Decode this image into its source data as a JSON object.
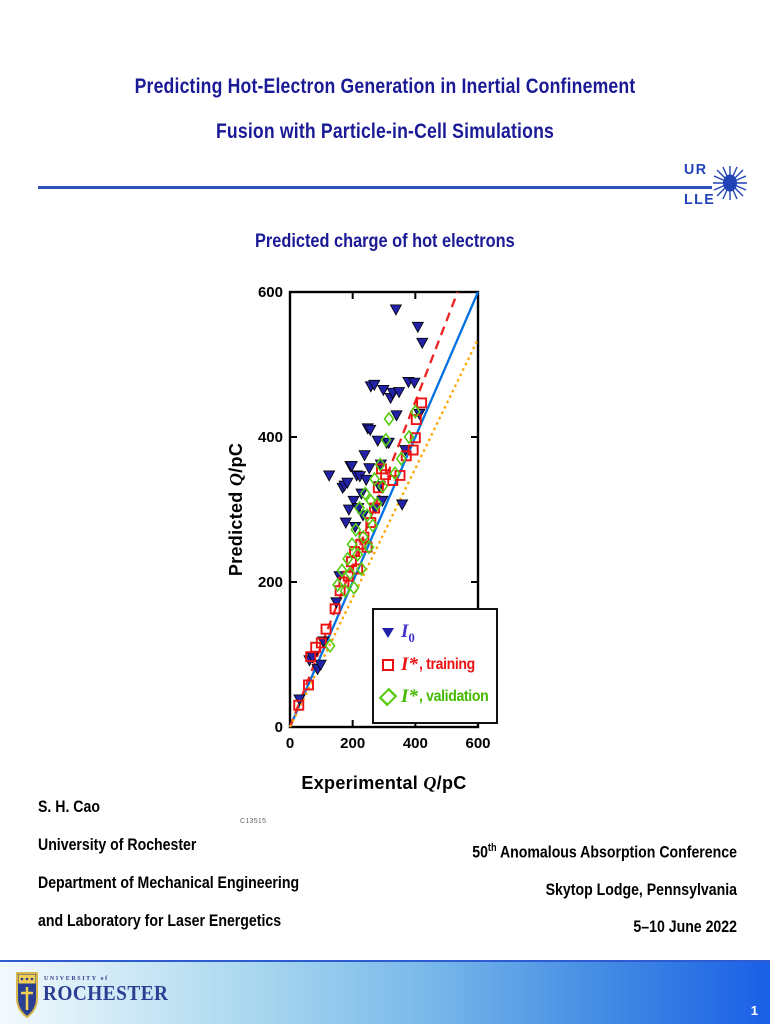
{
  "slide": {
    "title_lines": [
      "Predicting Hot-Electron Generation in Inertial Confinement",
      "Fusion with Particle-in-Cell Simulations"
    ],
    "figure_code": "C13515",
    "page_number": "1"
  },
  "lle_logo": {
    "top": "UR",
    "bottom": "LLE"
  },
  "chart_data": {
    "type": "scatter",
    "title": "Predicted charge of hot electrons",
    "xlabel": "Experimental Q/pC",
    "ylabel": "Predicted Q/pC",
    "xlim": [
      0,
      600
    ],
    "ylim": [
      0,
      600
    ],
    "xticks": [
      0,
      200,
      400,
      600
    ],
    "yticks": [
      0,
      200,
      400,
      600
    ],
    "grid": false,
    "legend_position": "lower right",
    "legend": [
      {
        "base": "I",
        "sub": "0",
        "rest": ""
      },
      {
        "base": "I*",
        "sub": "",
        "rest": ", training"
      },
      {
        "base": "I*",
        "sub": "",
        "rest": ", validation"
      }
    ],
    "lines": [
      {
        "name": "identity y=x",
        "style": "solid",
        "color": "#0072e0",
        "x": [
          0,
          600
        ],
        "y": [
          0,
          600
        ]
      },
      {
        "name": "upper fit",
        "style": "dashed",
        "color": "#ee2222",
        "x": [
          0,
          535
        ],
        "y": [
          0,
          600
        ]
      },
      {
        "name": "lower fit",
        "style": "dotted",
        "color": "#ffa500",
        "x": [
          0,
          600
        ],
        "y": [
          0,
          535
        ]
      }
    ],
    "series": [
      {
        "name": "I0",
        "marker": "triangle-down",
        "color": "#2222a8",
        "points": [
          [
            30,
            38
          ],
          [
            62,
            92
          ],
          [
            72,
            96
          ],
          [
            88,
            80
          ],
          [
            98,
            86
          ],
          [
            106,
            118
          ],
          [
            125,
            347
          ],
          [
            148,
            172
          ],
          [
            158,
            208
          ],
          [
            168,
            330
          ],
          [
            174,
            333
          ],
          [
            178,
            282
          ],
          [
            183,
            337
          ],
          [
            188,
            300
          ],
          [
            193,
            360
          ],
          [
            197,
            360
          ],
          [
            203,
            312
          ],
          [
            208,
            276
          ],
          [
            213,
            347
          ],
          [
            218,
            302
          ],
          [
            223,
            346
          ],
          [
            228,
            322
          ],
          [
            233,
            292
          ],
          [
            238,
            375
          ],
          [
            243,
            341
          ],
          [
            248,
            412
          ],
          [
            253,
            357
          ],
          [
            256,
            410
          ],
          [
            258,
            470
          ],
          [
            269,
            472
          ],
          [
            272,
            302
          ],
          [
            280,
            395
          ],
          [
            285,
            332
          ],
          [
            290,
            362
          ],
          [
            295,
            312
          ],
          [
            298,
            465
          ],
          [
            308,
            392
          ],
          [
            315,
            392
          ],
          [
            321,
            454
          ],
          [
            328,
            461
          ],
          [
            338,
            576
          ],
          [
            340,
            430
          ],
          [
            348,
            462
          ],
          [
            358,
            307
          ],
          [
            368,
            382
          ],
          [
            378,
            476
          ],
          [
            397,
            475
          ],
          [
            408,
            552
          ],
          [
            413,
            432
          ],
          [
            422,
            530
          ]
        ]
      },
      {
        "name": "I*, training",
        "marker": "open-square",
        "color": "#ee1111",
        "points": [
          [
            28,
            30
          ],
          [
            59,
            58
          ],
          [
            66,
            97
          ],
          [
            82,
            110
          ],
          [
            100,
            116
          ],
          [
            115,
            135
          ],
          [
            144,
            163
          ],
          [
            160,
            188
          ],
          [
            172,
            200
          ],
          [
            186,
            208
          ],
          [
            196,
            228
          ],
          [
            206,
            242
          ],
          [
            216,
            218
          ],
          [
            226,
            252
          ],
          [
            236,
            262
          ],
          [
            246,
            248
          ],
          [
            258,
            282
          ],
          [
            270,
            302
          ],
          [
            282,
            330
          ],
          [
            292,
            356
          ],
          [
            305,
            348
          ],
          [
            328,
            340
          ],
          [
            351,
            347
          ],
          [
            371,
            374
          ],
          [
            393,
            382
          ],
          [
            400,
            399
          ],
          [
            403,
            424
          ],
          [
            420,
            447
          ]
        ]
      },
      {
        "name": "I*, validation",
        "marker": "open-diamond",
        "color": "#55cc11",
        "points": [
          [
            128,
            112
          ],
          [
            152,
            196
          ],
          [
            166,
            216
          ],
          [
            176,
            188
          ],
          [
            184,
            232
          ],
          [
            192,
            212
          ],
          [
            198,
            252
          ],
          [
            204,
            192
          ],
          [
            210,
            272
          ],
          [
            216,
            238
          ],
          [
            222,
            302
          ],
          [
            228,
            218
          ],
          [
            234,
            262
          ],
          [
            240,
            322
          ],
          [
            246,
            292
          ],
          [
            252,
            248
          ],
          [
            258,
            312
          ],
          [
            264,
            278
          ],
          [
            270,
            342
          ],
          [
            278,
            308
          ],
          [
            288,
            362
          ],
          [
            296,
            332
          ],
          [
            306,
            396
          ],
          [
            316,
            425
          ],
          [
            335,
            350
          ],
          [
            355,
            370
          ],
          [
            380,
            400
          ],
          [
            400,
            435
          ]
        ]
      }
    ]
  },
  "footer": {
    "left_lines": [
      "S. H. Cao",
      "University of Rochester",
      "Department of Mechanical Engineering",
      "and Laboratory for Laser Energetics"
    ],
    "right_line1_num": "50",
    "right_line1_sup": "th",
    "right_line1_rest": " Anomalous Absorption Conference",
    "right_line2": "Skytop Lodge, Pennsylvania",
    "right_line3": "5–10 June 2022"
  },
  "university_logo": {
    "small_text": "UNIVERSITY of",
    "name": "ROCHESTER"
  },
  "colors": {
    "title_text": "#1a1a96",
    "divider_rule": "#3052b8",
    "lle_logo_blue": "#2143b8",
    "identity_line": "#0072e0",
    "upper_fit_line": "#ee2222",
    "lower_fit_line": "#ffa500",
    "i0_marker": "#2222a8",
    "training_marker": "#ee1111",
    "validation_marker": "#55cc11",
    "legend_i0_text": "#4433cc",
    "bar_gradient_left": "#f3fafd",
    "bar_gradient_right": "#1a5fe6"
  }
}
